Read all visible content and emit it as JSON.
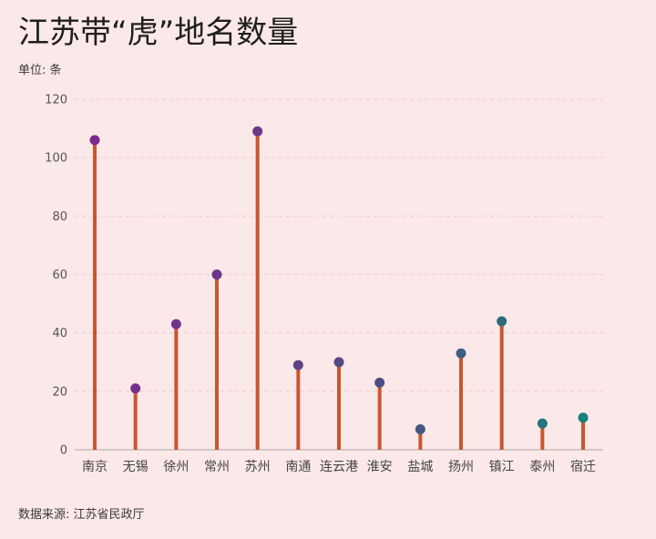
{
  "colors": {
    "background": "#fbe8e8",
    "stem": "#c9562f",
    "grid": "#ebcfcf",
    "axis": "#cbbcbc"
  },
  "chart_data": {
    "type": "bar",
    "title": "江苏带“虎”地名数量",
    "unit": "单位: 条",
    "source": "数据来源: 江苏省民政厅",
    "categories": [
      "南京",
      "无锡",
      "徐州",
      "常州",
      "苏州",
      "南通",
      "连云港",
      "淮安",
      "盐城",
      "扬州",
      "镇江",
      "泰州",
      "宿迁"
    ],
    "values": [
      106,
      21,
      43,
      60,
      109,
      29,
      30,
      23,
      7,
      33,
      44,
      9,
      11
    ],
    "dot_colors": [
      "#7b2a8d",
      "#772e8d",
      "#72328c",
      "#6d358b",
      "#693a8b",
      "#5c4387",
      "#554886",
      "#4d4f84",
      "#425882",
      "#3a6181",
      "#2e6a7f",
      "#22737d",
      "#17807c"
    ],
    "ylim": [
      0,
      120
    ],
    "yticks": [
      0,
      20,
      40,
      60,
      80,
      100,
      120
    ],
    "grid": true
  }
}
